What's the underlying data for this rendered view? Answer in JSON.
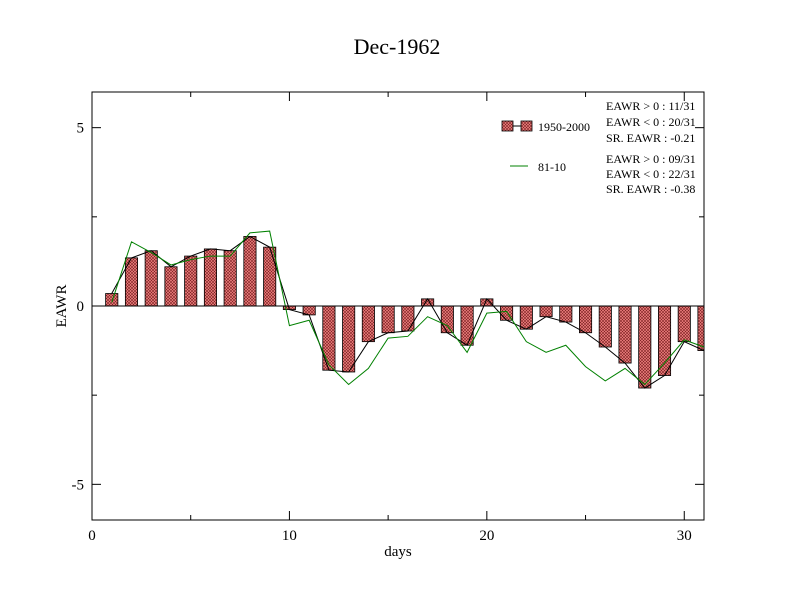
{
  "chart_data": {
    "type": "bar",
    "title": "Dec-1962",
    "xlabel": "days",
    "ylabel": "EAWR",
    "xlim": [
      0,
      31
    ],
    "ylim": [
      -6,
      6
    ],
    "x_ticks": [
      0,
      10,
      20,
      30
    ],
    "y_ticks": [
      5,
      0,
      -5
    ],
    "x_tick_labels": [
      "0",
      "10",
      "20",
      "30"
    ],
    "y_tick_labels": [
      "5",
      "0",
      "-5"
    ],
    "x": [
      1,
      2,
      3,
      4,
      5,
      6,
      7,
      8,
      9,
      10,
      11,
      12,
      13,
      14,
      15,
      16,
      17,
      18,
      19,
      20,
      21,
      22,
      23,
      24,
      25,
      26,
      27,
      28,
      29,
      30,
      31
    ],
    "series": [
      {
        "name": "1950-2000",
        "kind": "bar",
        "color": "#f08080",
        "values": [
          0.35,
          1.35,
          1.55,
          1.1,
          1.4,
          1.6,
          1.55,
          1.95,
          1.65,
          -0.1,
          -0.25,
          -1.8,
          -1.85,
          -1.0,
          -0.75,
          -0.7,
          0.2,
          -0.75,
          -1.1,
          0.2,
          -0.4,
          -0.65,
          -0.3,
          -0.45,
          -0.75,
          -1.15,
          -1.6,
          -2.3,
          -1.95,
          -1.0,
          -1.25
        ]
      },
      {
        "name": "81-10",
        "kind": "line",
        "color": "#008000",
        "values": [
          0.1,
          1.8,
          1.5,
          1.15,
          1.3,
          1.4,
          1.4,
          2.05,
          2.1,
          -0.55,
          -0.4,
          -1.65,
          -2.2,
          -1.75,
          -0.9,
          -0.85,
          -0.3,
          -0.55,
          -1.3,
          -0.2,
          -0.15,
          -1.0,
          -1.3,
          -1.1,
          -1.7,
          -2.1,
          -1.75,
          -2.2,
          -1.6,
          -0.95,
          -1.15
        ]
      }
    ],
    "line_color_bar_tops": "#000000",
    "legend": {
      "placement": "top-right",
      "entries": [
        {
          "label": "1950-2000",
          "stats": [
            "EAWR > 0 : 11/31",
            "EAWR < 0 : 20/31",
            "SR. EAWR : -0.21"
          ]
        },
        {
          "label": "81-10",
          "stats": [
            "EAWR > 0 : 09/31",
            "EAWR < 0 : 22/31",
            "SR. EAWR : -0.38"
          ]
        }
      ]
    },
    "grid": false
  }
}
